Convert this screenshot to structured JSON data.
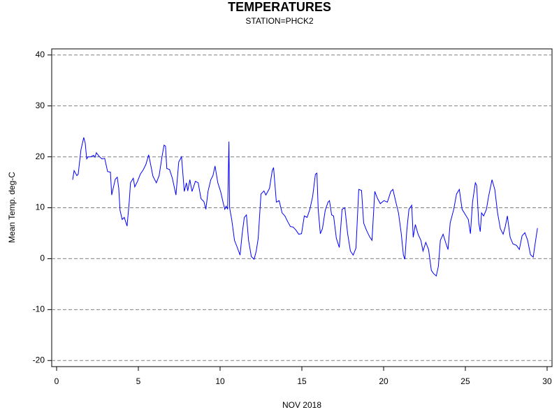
{
  "chart_data": {
    "type": "line",
    "title": "TEMPERATURES",
    "subtitle": "STATION=PHCK2",
    "xlabel": "NOV 2018",
    "ylabel": "Mean Temp. deg-C",
    "color": "#0000ff",
    "grid": true,
    "xlim": [
      -0.3,
      30.3
    ],
    "ylim": [
      -21.2,
      41.2
    ],
    "xticks": [
      0,
      5,
      10,
      15,
      20,
      25,
      30
    ],
    "yticks": [
      -20,
      -10,
      0,
      10,
      20,
      30,
      40
    ],
    "x": [
      0.98,
      1.07,
      1.24,
      1.32,
      1.49,
      1.66,
      1.75,
      1.84,
      1.92,
      2.09,
      2.26,
      2.35,
      2.43,
      2.6,
      2.77,
      2.94,
      3.12,
      3.29,
      3.37,
      3.46,
      3.59,
      3.71,
      3.8,
      3.88,
      4.01,
      4.14,
      4.31,
      4.44,
      4.52,
      4.69,
      4.78,
      4.95,
      5.12,
      5.29,
      5.46,
      5.63,
      5.72,
      5.89,
      6.1,
      6.27,
      6.44,
      6.57,
      6.66,
      6.74,
      6.91,
      7.08,
      7.3,
      7.47,
      7.64,
      7.81,
      7.94,
      8.02,
      8.15,
      8.28,
      8.49,
      8.66,
      8.83,
      9.01,
      9.13,
      9.26,
      9.43,
      9.56,
      9.69,
      9.86,
      10.03,
      10.2,
      10.29,
      10.37,
      10.46,
      10.54,
      10.58,
      10.71,
      10.88,
      11.05,
      11.22,
      11.35,
      11.48,
      11.61,
      11.74,
      11.91,
      12.08,
      12.21,
      12.33,
      12.5,
      12.68,
      12.8,
      13.02,
      13.19,
      13.27,
      13.44,
      13.61,
      13.79,
      13.96,
      14.13,
      14.3,
      14.47,
      14.64,
      14.81,
      14.98,
      15.15,
      15.32,
      15.49,
      15.66,
      15.83,
      15.92,
      16.0,
      16.13,
      16.26,
      16.43,
      16.6,
      16.69,
      16.82,
      16.94,
      17.11,
      17.29,
      17.46,
      17.63,
      17.8,
      17.97,
      18.14,
      18.31,
      18.48,
      18.65,
      18.78,
      18.95,
      19.16,
      19.29,
      19.46,
      19.63,
      19.8,
      20.02,
      20.23,
      20.44,
      20.57,
      20.75,
      20.91,
      21.08,
      21.21,
      21.3,
      21.42,
      21.55,
      21.72,
      21.81,
      21.94,
      22.11,
      22.28,
      22.41,
      22.58,
      22.75,
      22.92,
      23.05,
      23.22,
      23.35,
      23.47,
      23.64,
      23.82,
      23.94,
      24.07,
      24.29,
      24.46,
      24.63,
      24.8,
      25.01,
      25.18,
      25.31,
      25.44,
      25.61,
      25.69,
      25.82,
      25.91,
      25.99,
      26.12,
      26.29,
      26.42,
      26.63,
      26.8,
      26.97,
      27.14,
      27.31,
      27.44,
      27.57,
      27.74,
      27.91,
      28.13,
      28.3,
      28.47,
      28.64,
      28.81,
      28.98,
      29.15,
      29.28,
      29.41
    ],
    "values": [
      15.5,
      17.3,
      16.3,
      16.6,
      21.4,
      23.8,
      22.7,
      19.6,
      20,
      20,
      20.3,
      19.9,
      20.8,
      20.1,
      19.6,
      19.7,
      17.1,
      17,
      12.5,
      13.8,
      15.6,
      16,
      13.8,
      9.5,
      7.7,
      8.1,
      6.4,
      11.1,
      14.9,
      15.8,
      14.1,
      15.2,
      16.6,
      17.4,
      18.5,
      20.4,
      19,
      16.2,
      14.9,
      16.3,
      19.9,
      22.3,
      22.1,
      17.7,
      17.5,
      15.8,
      12.5,
      19,
      20,
      13.2,
      14.9,
      13.3,
      15.5,
      13.2,
      15.2,
      14.9,
      11.8,
      11.2,
      9.7,
      13.2,
      15.5,
      16.3,
      18.2,
      14.9,
      13.2,
      10.8,
      9.7,
      10.3,
      9.7,
      23,
      10,
      7.7,
      3.6,
      2.2,
      0.7,
      4.9,
      8.1,
      8.6,
      3.6,
      0.4,
      -0.1,
      1.5,
      4,
      12.7,
      13.3,
      12.5,
      13.8,
      17.3,
      17.9,
      11.1,
      11.4,
      9,
      8.4,
      7.3,
      6.3,
      6.2,
      5.6,
      4.8,
      4.9,
      8.4,
      8.1,
      9.7,
      12.2,
      16.6,
      16.8,
      9.7,
      4.9,
      5.9,
      9.5,
      11.1,
      11.4,
      8.6,
      8.4,
      4,
      2.2,
      9.7,
      10,
      4.9,
      1.5,
      0.7,
      2.1,
      13.6,
      13.4,
      7,
      5.6,
      4.2,
      3.6,
      13.2,
      11.8,
      10.8,
      11.4,
      11.1,
      13.2,
      13.6,
      11.1,
      9,
      4.9,
      0.7,
      -0.1,
      5.6,
      9.7,
      10.5,
      4.2,
      6.7,
      4.8,
      3.6,
      1.5,
      3.2,
      1.8,
      -2.3,
      -2.9,
      -3.4,
      -1.5,
      3.6,
      4.8,
      2.9,
      1.8,
      7,
      9.7,
      12.7,
      13.6,
      9.7,
      8.6,
      7.7,
      4.9,
      11.1,
      14.9,
      14.4,
      7,
      5.3,
      9,
      8.4,
      9.7,
      12.2,
      15.5,
      13.6,
      9,
      5.9,
      4.8,
      6.3,
      8.4,
      4.2,
      2.9,
      2.6,
      1.8,
      4.5,
      5.1,
      3.6,
      0.8,
      0.3,
      3.2,
      6
    ]
  }
}
